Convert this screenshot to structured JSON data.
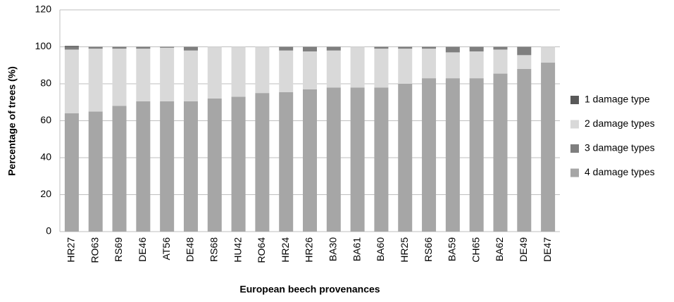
{
  "chart_data": {
    "type": "stacked_bar",
    "x_label": "European beech provenances",
    "y_label": "Percentage of trees (%)",
    "categories": [
      "HR27",
      "RO63",
      "RS69",
      "DE46",
      "AT56",
      "DE48",
      "RS68",
      "HU42",
      "RO64",
      "HR24",
      "HR26",
      "BA30",
      "BA61",
      "BA60",
      "HR25",
      "RS66",
      "BA59",
      "CH65",
      "BA62",
      "DE49",
      "DE47"
    ],
    "series": [
      {
        "name": "1 damage type",
        "color": "#595959",
        "values": [
          0.5,
          0,
          0,
          0,
          0,
          0,
          0,
          0,
          0,
          0,
          0,
          0,
          0,
          0,
          0,
          0,
          0,
          0,
          0,
          0,
          0
        ]
      },
      {
        "name": "2 damage types",
        "color": "#d9d9d9",
        "values": [
          34.5,
          34,
          31,
          28.5,
          29,
          27.5,
          28,
          27,
          25,
          22.5,
          20.5,
          20,
          22,
          21,
          19,
          16,
          14,
          14.5,
          13,
          7.5,
          8.5
        ]
      },
      {
        "name": "3 damage types",
        "color": "#7f7f7f",
        "values": [
          1.5,
          1,
          1,
          1,
          0.5,
          2,
          0,
          0,
          0,
          2,
          2.5,
          2,
          0,
          1,
          1,
          1,
          3,
          2.5,
          1.5,
          4.5,
          0
        ]
      },
      {
        "name": "4 damage types",
        "color": "#a6a6a6",
        "values": [
          64,
          65,
          68,
          70.5,
          70.5,
          70.5,
          72,
          73,
          75,
          75.5,
          77,
          78,
          78,
          78,
          80,
          83,
          83,
          83,
          85.5,
          88,
          91.5
        ]
      }
    ],
    "ylim": [
      0,
      120
    ],
    "yticks": [
      0,
      20,
      40,
      60,
      80,
      100,
      120
    ],
    "grid": true,
    "legend": "right"
  }
}
